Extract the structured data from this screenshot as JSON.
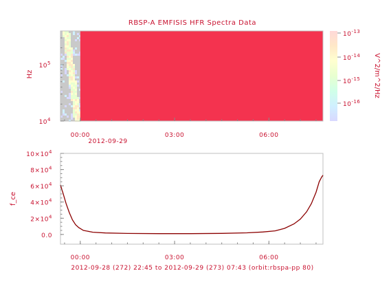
{
  "chart_data": [
    {
      "type": "heatmap",
      "title": "RBSP-A EMFISIS  HFR Spectra Data",
      "ylabel": "Hz",
      "y_scale": "log",
      "y_ticks": [
        {
          "value": 10000,
          "base": "10",
          "exp": "4"
        },
        {
          "value": 100000,
          "base": "10",
          "exp": "5"
        }
      ],
      "x_ticks": [
        {
          "hours": 0,
          "label": "00:00"
        },
        {
          "hours": 3,
          "label": "03:00"
        },
        {
          "hours": 6,
          "label": "06:00"
        }
      ],
      "x_date_label": "2012-09-29",
      "xlim_hours": [
        -0.63,
        7.72
      ],
      "data_start_hours": 0.0,
      "fill_color": "#f4334f",
      "colorbar": {
        "label": "V^2/m^2/Hz",
        "ticks": [
          {
            "base": "10",
            "exp": "-13"
          },
          {
            "base": "10",
            "exp": "-14"
          },
          {
            "base": "10",
            "exp": "-15"
          },
          {
            "base": "10",
            "exp": "-16"
          }
        ],
        "colors": [
          "#ffd8d8",
          "#ffe8c8",
          "#ffffd0",
          "#e8ffd0",
          "#d0ffe8",
          "#d0f0ff",
          "#d8d8ff"
        ]
      }
    },
    {
      "type": "line",
      "ylabel": "f_ce",
      "y_ticks": [
        {
          "value": 0,
          "label": "0.0"
        },
        {
          "value": 20000,
          "label": "2×10",
          "exp": "4"
        },
        {
          "value": 40000,
          "label": "4×10",
          "exp": "4"
        },
        {
          "value": 60000,
          "label": "6×10",
          "exp": "4"
        },
        {
          "value": 80000,
          "label": "8×10",
          "exp": "4"
        },
        {
          "value": 100000,
          "label": "10×10",
          "exp": "4"
        }
      ],
      "ylim": [
        -12000,
        100000
      ],
      "x_ticks": [
        {
          "hours": 0,
          "label": "00:00"
        },
        {
          "hours": 3,
          "label": "03:00"
        },
        {
          "hours": 6,
          "label": "06:00"
        }
      ],
      "xlim_hours": [
        -0.63,
        7.72
      ],
      "xlabel": "2012-09-28 (272) 22:45 to 2012-09-29 (273) 07:43 (orbit:rbspa-pp 80)",
      "series_color": "#8b0000",
      "x": [
        -0.63,
        -0.55,
        -0.45,
        -0.35,
        -0.25,
        -0.15,
        -0.05,
        0.1,
        0.4,
        0.8,
        1.5,
        2.5,
        3.5,
        4.5,
        5.3,
        5.8,
        6.2,
        6.5,
        6.8,
        7.0,
        7.2,
        7.35,
        7.5,
        7.6,
        7.68,
        7.72
      ],
      "y": [
        61000,
        51000,
        38000,
        27000,
        18000,
        12000,
        8500,
        5000,
        2800,
        1800,
        1200,
        1000,
        1000,
        1300,
        2000,
        3000,
        4500,
        7500,
        13000,
        19000,
        28000,
        38000,
        52000,
        65000,
        71000,
        73000
      ]
    }
  ]
}
